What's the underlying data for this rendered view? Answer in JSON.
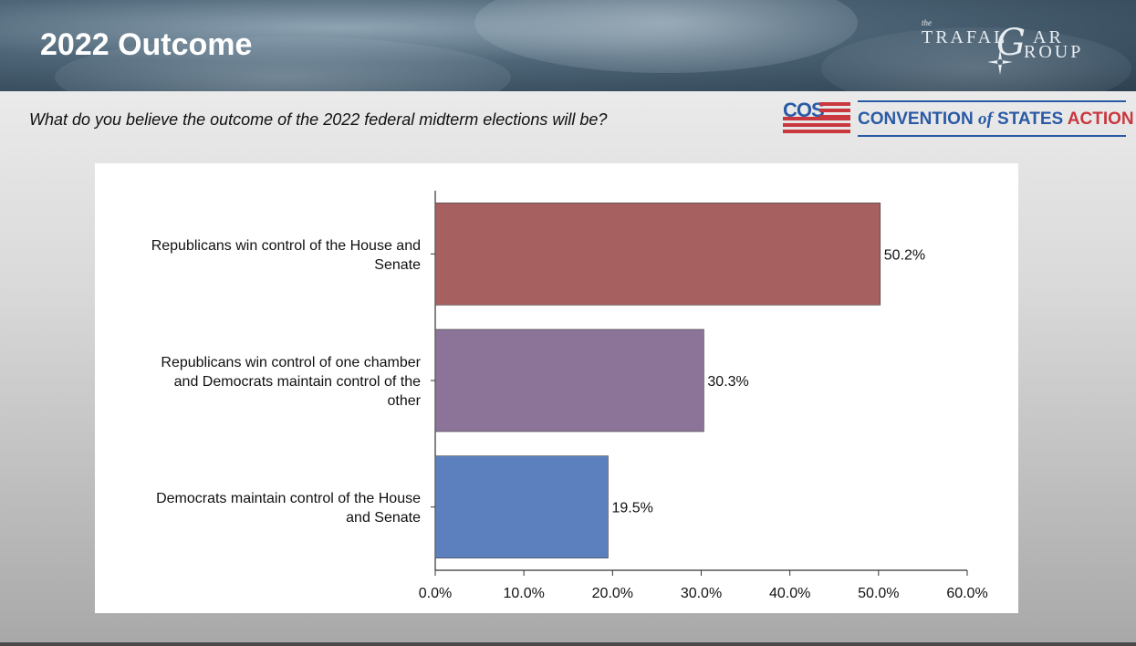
{
  "header": {
    "title": "2022 Outcome",
    "logo_text": "the TRAFALGAR GROUP"
  },
  "question": "What do you believe the outcome of the 2022 federal midterm elections will be?",
  "sponsor": {
    "abbr": "COS",
    "name_part1": "CONVENTION ",
    "name_of": "of",
    "name_part2": " STATES ",
    "name_action": "ACTION"
  },
  "colors": {
    "bar1": "#a66060",
    "bar2": "#8c7398",
    "bar3": "#5c80be",
    "brand_blue": "#2a5aa6",
    "brand_red": "#c8383e"
  },
  "chart_data": {
    "type": "bar",
    "orientation": "horizontal",
    "categories": [
      [
        "Republicans win control of the House and",
        "Senate"
      ],
      [
        "Republicans win control of one chamber",
        "and Democrats maintain control of the",
        "other"
      ],
      [
        "Democrats maintain control of the House",
        "and Senate"
      ]
    ],
    "values": [
      50.2,
      30.3,
      19.5
    ],
    "value_labels": [
      "50.2%",
      "30.3%",
      "19.5%"
    ],
    "xlim": [
      0,
      60
    ],
    "xticks": [
      0,
      10,
      20,
      30,
      40,
      50,
      60
    ],
    "xtick_labels": [
      "0.0%",
      "10.0%",
      "20.0%",
      "30.0%",
      "40.0%",
      "50.0%",
      "60.0%"
    ],
    "grid": false,
    "legend": "none"
  }
}
